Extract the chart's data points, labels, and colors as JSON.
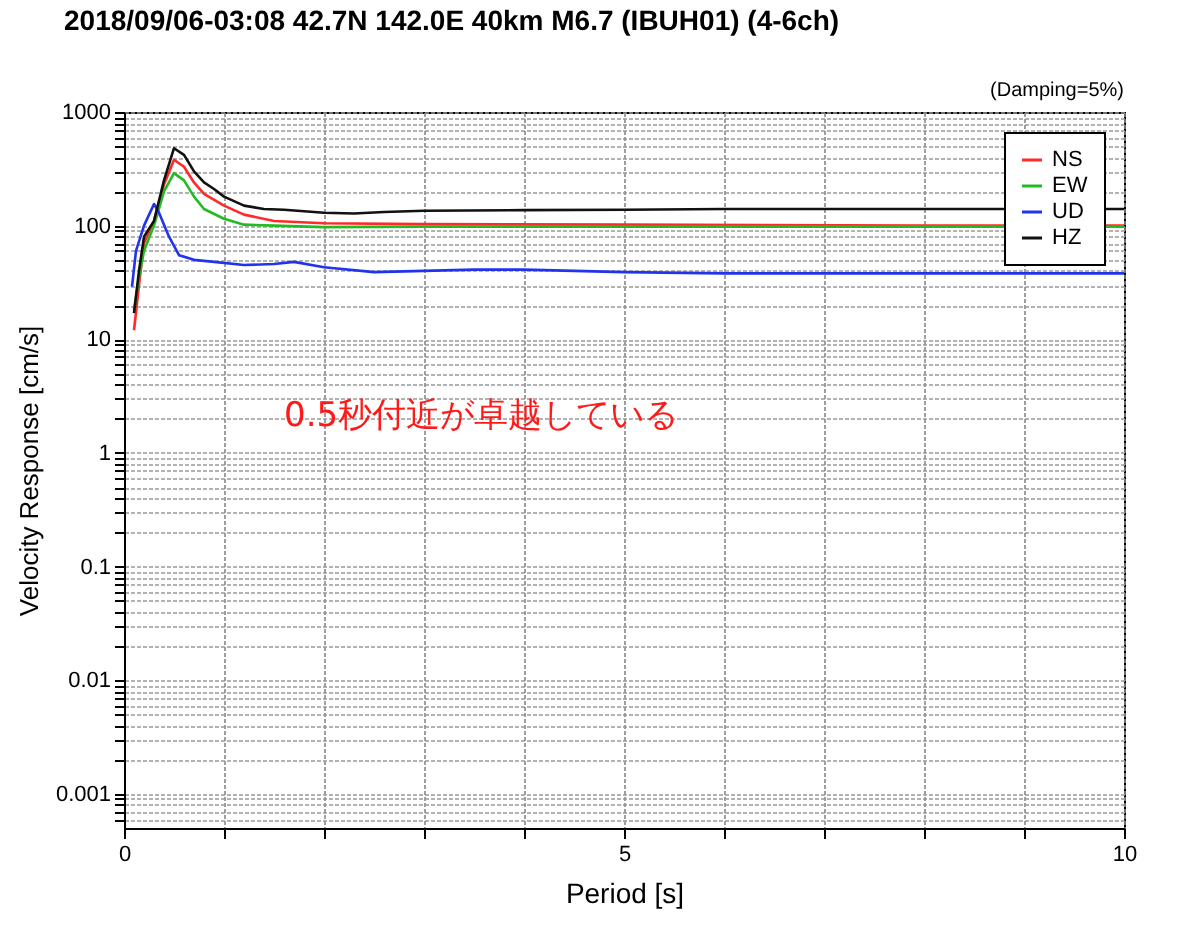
{
  "chart_data": {
    "type": "line",
    "title": "2018/09/06-03:08 42.7N 142.0E 40km M6.7 (IBUH01) (4-6ch)",
    "xlabel": "Period [s]",
    "ylabel": "Velocity Response [cm/s]",
    "annotations": [
      "(Damping=5%)",
      "0.5秒付近が卓越している"
    ],
    "log": "y",
    "grid": true,
    "legend": "top right",
    "xlim": [
      0,
      10
    ],
    "xticks": [
      0,
      {
        "value": 1,
        "label": null
      },
      {
        "value": 2,
        "label": null
      },
      {
        "value": 3,
        "label": null
      },
      {
        "value": 4,
        "label": null
      },
      5,
      {
        "value": 6,
        "label": null
      },
      {
        "value": 7,
        "label": null
      },
      {
        "value": 8,
        "label": null
      },
      {
        "value": 9,
        "label": null
      },
      10
    ],
    "ylim": [
      0.0005,
      1000
    ],
    "yticks": [
      {
        "value": 0.0006,
        "label": null
      },
      {
        "value": 0.0007,
        "label": null
      },
      {
        "value": 0.0008,
        "label": null
      },
      {
        "value": 0.0009,
        "label": null
      },
      0.001,
      {
        "value": 0.002,
        "label": null
      },
      {
        "value": 0.003,
        "label": null
      },
      {
        "value": 0.004,
        "label": null
      },
      {
        "value": 0.005,
        "label": null
      },
      {
        "value": 0.006,
        "label": null
      },
      {
        "value": 0.007,
        "label": null
      },
      {
        "value": 0.008,
        "label": null
      },
      {
        "value": 0.009,
        "label": null
      },
      0.01,
      {
        "value": 0.02,
        "label": null
      },
      {
        "value": 0.03,
        "label": null
      },
      {
        "value": 0.04,
        "label": null
      },
      {
        "value": 0.05,
        "label": null
      },
      {
        "value": 0.06,
        "label": null
      },
      {
        "value": 0.07,
        "label": null
      },
      {
        "value": 0.08,
        "label": null
      },
      {
        "value": 0.09,
        "label": null
      },
      0.1,
      {
        "value": 0.2,
        "label": null
      },
      {
        "value": 0.3,
        "label": null
      },
      {
        "value": 0.4,
        "label": null
      },
      {
        "value": 0.5,
        "label": null
      },
      {
        "value": 0.6,
        "label": null
      },
      {
        "value": 0.7,
        "label": null
      },
      {
        "value": 0.8,
        "label": null
      },
      {
        "value": 0.9,
        "label": null
      },
      1,
      {
        "value": 2,
        "label": null
      },
      {
        "value": 3,
        "label": null
      },
      {
        "value": 4,
        "label": null
      },
      {
        "value": 5,
        "label": null
      },
      {
        "value": 6,
        "label": null
      },
      {
        "value": 7,
        "label": null
      },
      {
        "value": 8,
        "label": null
      },
      {
        "value": 9,
        "label": null
      },
      10,
      {
        "value": 20,
        "label": null
      },
      {
        "value": 30,
        "label": null
      },
      {
        "value": 40,
        "label": null
      },
      {
        "value": 50,
        "label": null
      },
      {
        "value": 60,
        "label": null
      },
      {
        "value": 70,
        "label": null
      },
      {
        "value": 80,
        "label": null
      },
      {
        "value": 90,
        "label": null
      },
      100,
      {
        "value": 200,
        "label": null
      },
      {
        "value": 300,
        "label": null
      },
      {
        "value": 400,
        "label": null
      },
      {
        "value": 500,
        "label": null
      },
      {
        "value": 600,
        "label": null
      },
      {
        "value": 700,
        "label": null
      },
      {
        "value": 800,
        "label": null
      },
      {
        "value": 900,
        "label": null
      },
      1000
    ],
    "series": [
      {
        "name": "NS",
        "color": "#ff2a2a",
        "x": [
          0.1,
          0.15,
          0.2,
          0.3,
          0.4,
          0.5,
          0.6,
          0.7,
          0.8,
          1.0,
          1.2,
          1.5,
          2,
          3,
          5,
          8,
          10
        ],
        "values": [
          12,
          30,
          70,
          110,
          230,
          380,
          330,
          240,
          190,
          150,
          125,
          110,
          105,
          103,
          102,
          100,
          100
        ]
      },
      {
        "name": "EW",
        "color": "#22bb22",
        "x": [
          0.1,
          0.15,
          0.2,
          0.3,
          0.4,
          0.5,
          0.6,
          0.7,
          0.8,
          1.0,
          1.2,
          1.5,
          2,
          3,
          5,
          10
        ],
        "values": [
          18,
          35,
          60,
          100,
          200,
          290,
          250,
          180,
          140,
          115,
          102,
          100,
          97,
          98,
          98,
          98
        ]
      },
      {
        "name": "UD",
        "color": "#2233ee",
        "x": [
          0.08,
          0.12,
          0.2,
          0.3,
          0.35,
          0.45,
          0.55,
          0.7,
          0.9,
          1.2,
          1.5,
          1.7,
          2.0,
          2.5,
          3,
          3.5,
          4,
          5,
          6,
          8,
          10
        ],
        "values": [
          29,
          60,
          100,
          155,
          130,
          80,
          55,
          50,
          48,
          45,
          46,
          48,
          43,
          39,
          40,
          41,
          41,
          39,
          38,
          38,
          38
        ]
      },
      {
        "name": "HZ",
        "color": "#111111",
        "x": [
          0.1,
          0.15,
          0.2,
          0.3,
          0.4,
          0.5,
          0.6,
          0.7,
          0.8,
          0.9,
          1.0,
          1.2,
          1.4,
          1.6,
          2.0,
          2.3,
          2.6,
          3.0,
          4,
          5,
          6,
          8,
          10
        ],
        "values": [
          17,
          40,
          80,
          110,
          250,
          480,
          420,
          300,
          240,
          210,
          180,
          150,
          140,
          138,
          130,
          128,
          132,
          135,
          137,
          138,
          140,
          140,
          140
        ]
      }
    ]
  }
}
